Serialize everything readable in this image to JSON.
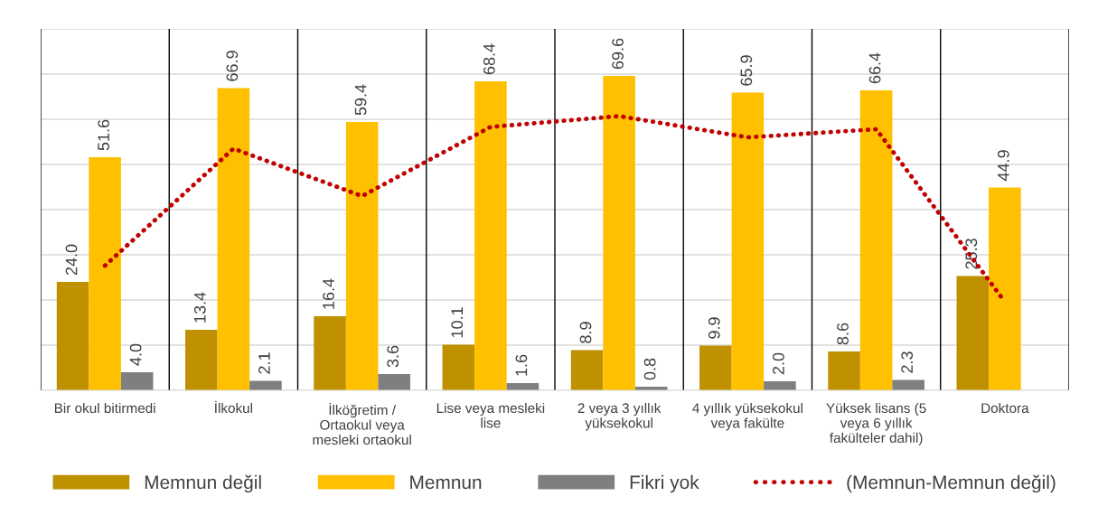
{
  "chart_data": {
    "type": "bar",
    "categories": [
      "Bir okul bitirmedi",
      "İlkokul",
      "İlköğretim /\nOrtaokul veya\nmesleki ortaokul",
      "Lise veya mesleki\nlise",
      "2 veya 3 yıllık\nyüksekokul",
      "4 yıllık yüksekokul\nveya fakülte",
      "Yüksek lisans (5\nveya 6 yıllık\nfakülteler dahil)",
      "Doktora"
    ],
    "series": [
      {
        "name": "Memnun değil",
        "color": "#bf9000",
        "values": [
          24.0,
          13.4,
          16.4,
          10.1,
          8.9,
          9.9,
          8.6,
          25.3
        ],
        "value_labels": [
          "24.0",
          "13.4",
          "16.4",
          "10.1",
          "8.9",
          "9.9",
          "8.6",
          "25.3"
        ]
      },
      {
        "name": "Memnun",
        "color": "#ffc000",
        "values": [
          51.6,
          66.9,
          59.4,
          68.4,
          69.6,
          65.9,
          66.4,
          44.9
        ],
        "value_labels": [
          "51.6",
          "66.9",
          "59.4",
          "68.4",
          "69.6",
          "65.9",
          "66.4",
          "44.9"
        ]
      },
      {
        "name": "Fikri yok",
        "color": "#7f7f7f",
        "values": [
          4.0,
          2.1,
          3.6,
          1.6,
          0.8,
          2.0,
          2.3,
          null
        ],
        "value_labels": [
          "4.0",
          "2.1",
          "3.6",
          "1.6",
          "0.8",
          "2.0",
          "2.3",
          null
        ]
      },
      {
        "name": "(Memnun-Memnun değil)",
        "type": "line",
        "color": "#c00000",
        "line_style": "dotted",
        "values": [
          27.6,
          53.5,
          43.0,
          58.3,
          60.7,
          56.0,
          57.8,
          19.6
        ]
      }
    ],
    "ylim": [
      0,
      80
    ],
    "yticks": [
      {
        "value": 0,
        "label": null
      },
      {
        "value": 10,
        "label": null
      },
      {
        "value": 20,
        "label": null
      },
      {
        "value": 30,
        "label": null
      },
      {
        "value": 40,
        "label": null
      },
      {
        "value": 50,
        "label": null
      },
      {
        "value": 60,
        "label": null
      },
      {
        "value": 70,
        "label": null
      },
      {
        "value": 80,
        "label": null
      }
    ],
    "tick_labels": "x",
    "grid": true,
    "legend": "bottom"
  }
}
